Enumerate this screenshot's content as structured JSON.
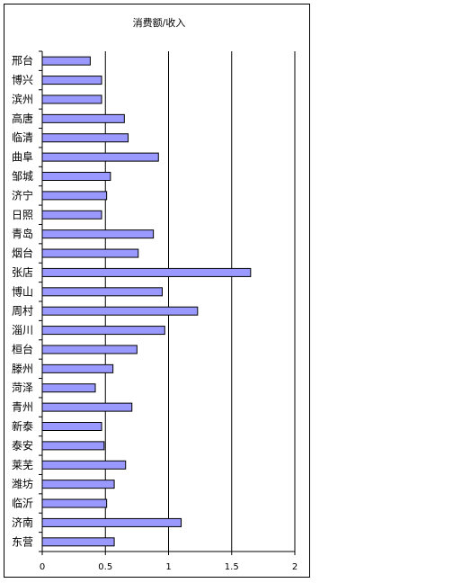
{
  "chart_data": {
    "type": "bar",
    "orientation": "horizontal",
    "title": "消费额/收入",
    "categories": [
      "邢台",
      "博兴",
      "滨州",
      "高唐",
      "临清",
      "曲阜",
      "邹城",
      "济宁",
      "日照",
      "青岛",
      "烟台",
      "张店",
      "博山",
      "周村",
      "淄川",
      "桓台",
      "滕州",
      "菏泽",
      "青州",
      "新泰",
      "泰安",
      "莱芜",
      "潍坊",
      "临沂",
      "济南",
      "东营"
    ],
    "values": [
      0.38,
      0.47,
      0.47,
      0.65,
      0.68,
      0.92,
      0.54,
      0.51,
      0.47,
      0.88,
      0.76,
      1.65,
      0.95,
      1.23,
      0.97,
      0.75,
      0.56,
      0.42,
      0.71,
      0.47,
      0.49,
      0.66,
      0.57,
      0.51,
      1.1,
      0.57
    ],
    "xlim": [
      0,
      2
    ],
    "x_ticks": [
      "0",
      "0.5",
      "1",
      "1.5",
      "2"
    ],
    "x_tick_values": [
      0,
      0.5,
      1,
      1.5,
      2
    ],
    "grid": "vertical",
    "legend": "none",
    "bar_color": "#9999ff",
    "bar_stroke": "#000000"
  }
}
